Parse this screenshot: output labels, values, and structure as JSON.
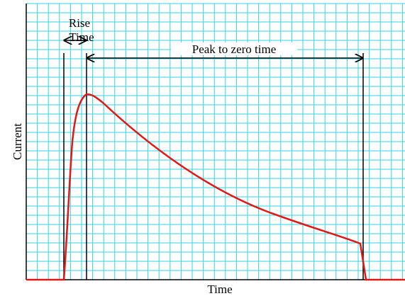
{
  "labels": {
    "rise_time": [
      "Rise",
      "Time"
    ],
    "peak_to_zero": "Peak to zero time",
    "y_axis": "Current",
    "x_axis": "Time"
  }
}
